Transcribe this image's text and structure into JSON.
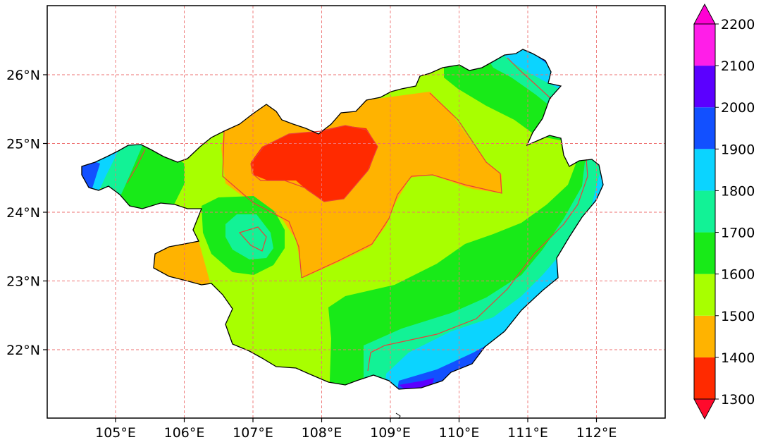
{
  "map": {
    "lon_ticks": [
      "105°E",
      "106°E",
      "107°E",
      "108°E",
      "109°E",
      "110°E",
      "111°E",
      "112°E"
    ],
    "lat_ticks": [
      "22°N",
      "23°N",
      "24°N",
      "25°N",
      "26°N"
    ],
    "grid": "dashed red lat/lon graticule",
    "fill_type": "filled contours with red contour lines",
    "colorbar": {
      "labels": [
        "1300",
        "1400",
        "1500",
        "1600",
        "1700",
        "1800",
        "1900",
        "2000",
        "2100",
        "2200"
      ],
      "colors": [
        "#ff2a00",
        "#ffb300",
        "#a8ff00",
        "#18ea18",
        "#12f296",
        "#0bd4ff",
        "#1250ff",
        "#5b00ff",
        "#ff1ee8"
      ],
      "under_color": "#ff0a2c",
      "over_color": "#ff00d4",
      "extend": "both"
    }
  }
}
